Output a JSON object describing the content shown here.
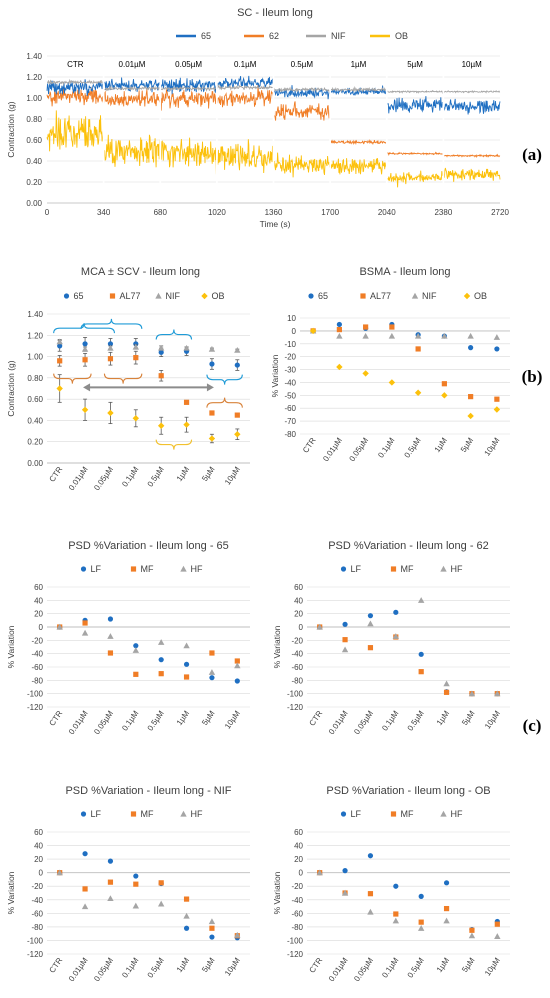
{
  "colors": {
    "blue": "#1f6fc2",
    "orange": "#f07d26",
    "gray": "#a5a5a5",
    "gold": "#fcc10c",
    "bracketBlue": "#1f9bd7",
    "bracketOrange": "#d8823a",
    "bracketGold": "#f2c12e",
    "arrowGray": "#8c8c8c"
  },
  "panel_labels": [
    "(a)",
    "(b)",
    "(c)"
  ],
  "chart_data": [
    {
      "type": "line",
      "title": "SC - Ileum long",
      "xlabel": "Time (s)",
      "ylabel": "Contraction (g)",
      "xticks": [
        "0",
        "340",
        "680",
        "1020",
        "1360",
        "1700",
        "2040",
        "2380",
        "2720"
      ],
      "yticks": [
        "0.00",
        "0.20",
        "0.40",
        "0.60",
        "0.80",
        "1.00",
        "1.20",
        "1.40"
      ],
      "xlim": [
        0,
        2720
      ],
      "ylim": [
        0,
        1.4
      ],
      "segments": [
        "CTR",
        "0.01µM",
        "0.05µM",
        "0.1µM",
        "0.5µM",
        "1µM",
        "5µM",
        "10µM"
      ],
      "series": [
        {
          "name": "65",
          "color": "#1f6fc2",
          "values": [
            1.1,
            1.12,
            1.12,
            1.15,
            1.05,
            1.06,
            0.93,
            0.92
          ],
          "noise": [
            0.08,
            0.08,
            0.08,
            0.07,
            0.06,
            0.04,
            0.09,
            0.08
          ]
        },
        {
          "name": "62",
          "color": "#f07d26",
          "values": [
            1.02,
            0.99,
            1.0,
            1.0,
            0.87,
            0.58,
            0.47,
            0.45
          ],
          "noise": [
            0.1,
            0.1,
            0.1,
            0.1,
            0.09,
            0.02,
            0.01,
            0.01
          ]
        },
        {
          "name": "NIF",
          "color": "#a5a5a5",
          "values": [
            1.15,
            1.09,
            1.09,
            1.1,
            1.08,
            1.08,
            1.06,
            1.06
          ],
          "noise": [
            0.02,
            0.02,
            0.02,
            0.02,
            0.02,
            0.02,
            0.01,
            0.01
          ]
        },
        {
          "name": "OB",
          "color": "#fcc10c",
          "values": [
            0.68,
            0.5,
            0.48,
            0.44,
            0.36,
            0.35,
            0.24,
            0.27
          ],
          "noise": [
            0.22,
            0.18,
            0.17,
            0.16,
            0.12,
            0.1,
            0.06,
            0.07
          ]
        }
      ]
    },
    {
      "type": "scatter",
      "title": "MCA ± SCV - Ileum long",
      "ylabel": "Contraction (g)",
      "categories": [
        "CTR",
        "0.01µM",
        "0.05µM",
        "0.1µM",
        "0.5µM",
        "1µM",
        "5µM",
        "10µM"
      ],
      "yticks": [
        "0.00",
        "0.20",
        "0.40",
        "0.60",
        "0.80",
        "1.00",
        "1.20",
        "1.40"
      ],
      "ylim": [
        0,
        1.4
      ],
      "series": [
        {
          "name": "65",
          "color": "#1f6fc2",
          "values": [
            1.1,
            1.12,
            1.12,
            1.12,
            1.04,
            1.05,
            0.93,
            0.92
          ],
          "err": [
            0.05,
            0.06,
            0.05,
            0.05,
            0.04,
            0.04,
            0.05,
            0.05
          ]
        },
        {
          "name": "AL77",
          "color": "#f07d26",
          "values": [
            0.96,
            0.97,
            0.98,
            0.99,
            0.82,
            0.57,
            0.47,
            0.45
          ],
          "err": [
            0.05,
            0.06,
            0.06,
            0.06,
            0.05,
            0.01,
            0.01,
            0.01
          ]
        },
        {
          "name": "NIF",
          "color": "#a5a5a5",
          "values": [
            1.14,
            1.07,
            1.08,
            1.09,
            1.08,
            1.08,
            1.07,
            1.06
          ],
          "err": [
            0.02,
            0.02,
            0.02,
            0.02,
            0.02,
            0.01,
            0.01,
            0.01
          ]
        },
        {
          "name": "OB",
          "color": "#fcc10c",
          "values": [
            0.7,
            0.5,
            0.47,
            0.42,
            0.35,
            0.36,
            0.23,
            0.27
          ],
          "err": [
            0.13,
            0.1,
            0.1,
            0.08,
            0.08,
            0.07,
            0.04,
            0.05
          ]
        }
      ]
    },
    {
      "type": "scatter",
      "title": "BSMA - Ileum long",
      "ylabel": "% Variation",
      "categories": [
        "CTR",
        "0.01µM",
        "0.05µM",
        "0.1µM",
        "0.5µM",
        "1µM",
        "5µM",
        "10µM"
      ],
      "yticks": [
        "10",
        "0",
        "-10",
        "-20",
        "-30",
        "-40",
        "-50",
        "-60",
        "-70",
        "-80"
      ],
      "ylim": [
        -80,
        10
      ],
      "series": [
        {
          "name": "65",
          "color": "#1f6fc2",
          "values": [
            0,
            5,
            2,
            5,
            -3,
            -4,
            -13,
            -14
          ]
        },
        {
          "name": "AL77",
          "color": "#f07d26",
          "values": [
            0,
            1,
            3,
            3,
            -14,
            -41,
            -51,
            -53
          ]
        },
        {
          "name": "NIF",
          "color": "#a5a5a5",
          "values": [
            0,
            -4,
            -4,
            -4,
            -4,
            -4,
            -4,
            -5
          ]
        },
        {
          "name": "OB",
          "color": "#fcc10c",
          "values": [
            0,
            -28,
            -33,
            -40,
            -48,
            -50,
            -66,
            -61
          ]
        }
      ]
    },
    {
      "type": "scatter",
      "title": "PSD %Variation - Ileum long -   65",
      "ylabel": "% Variation",
      "categories": [
        "CTR",
        "0.01µM",
        "0.05µM",
        "0.1µM",
        "0.5µM",
        "1µM",
        "5µM",
        "10µM"
      ],
      "yticks": [
        "60",
        "40",
        "20",
        "0",
        "-20",
        "-40",
        "-60",
        "-80",
        "-100",
        "-120"
      ],
      "ylim": [
        -120,
        60
      ],
      "series": [
        {
          "name": "LF",
          "color": "#1f6fc2",
          "values": [
            0,
            10,
            12,
            -28,
            -49,
            -56,
            -76,
            -81
          ]
        },
        {
          "name": "MF",
          "color": "#f07d26",
          "values": [
            0,
            6,
            -39,
            -71,
            -70,
            -75,
            -39,
            -51
          ]
        },
        {
          "name": "HF",
          "color": "#a5a5a5",
          "values": [
            0,
            -9,
            -14,
            -35,
            -23,
            -28,
            -68,
            -58
          ]
        }
      ]
    },
    {
      "type": "scatter",
      "title": "PSD %Variation - Ileum long -   62",
      "ylabel": "% Variation",
      "categories": [
        "CTR",
        "0.01µM",
        "0.05µM",
        "0.1µM",
        "0.5µM",
        "1µM",
        "5µM",
        "10µM"
      ],
      "yticks": [
        "60",
        "40",
        "20",
        "0",
        "-20",
        "-40",
        "-60",
        "-80",
        "-100",
        "-120"
      ],
      "ylim": [
        -120,
        60
      ],
      "series": [
        {
          "name": "LF",
          "color": "#1f6fc2",
          "values": [
            0,
            4,
            17,
            22,
            -41,
            -97,
            -100,
            -100
          ]
        },
        {
          "name": "MF",
          "color": "#f07d26",
          "values": [
            0,
            -19,
            -31,
            -15,
            -67,
            -98,
            -100,
            -100
          ]
        },
        {
          "name": "HF",
          "color": "#a5a5a5",
          "values": [
            0,
            -34,
            5,
            -14,
            40,
            -85,
            -100,
            -100
          ]
        }
      ]
    },
    {
      "type": "scatter",
      "title": "PSD %Variation - Ileum long - NIF",
      "ylabel": "% Variation",
      "categories": [
        "CTR",
        "0.01µM",
        "0.05µM",
        "0.1µM",
        "0.5µM",
        "1µM",
        "5µM",
        "10µM"
      ],
      "yticks": [
        "60",
        "40",
        "20",
        "0",
        "-20",
        "-40",
        "-60",
        "-80",
        "-100",
        "-120"
      ],
      "ylim": [
        -120,
        60
      ],
      "series": [
        {
          "name": "LF",
          "color": "#1f6fc2",
          "values": [
            0,
            28,
            17,
            -5,
            -16,
            -82,
            -95,
            -96
          ]
        },
        {
          "name": "MF",
          "color": "#f07d26",
          "values": [
            0,
            -24,
            -14,
            -17,
            -15,
            -39,
            -82,
            -93
          ]
        },
        {
          "name": "HF",
          "color": "#a5a5a5",
          "values": [
            0,
            -50,
            -38,
            -49,
            -46,
            -64,
            -72,
            -92
          ]
        }
      ]
    },
    {
      "type": "scatter",
      "title": "PSD %Variation - Ileum long - OB",
      "ylabel": "% Variation",
      "categories": [
        "CTR",
        "0.01µM",
        "0.05µM",
        "0.1µM",
        "0.5µM",
        "1µM",
        "5µM",
        "10µM"
      ],
      "yticks": [
        "60",
        "40",
        "20",
        "0",
        "-20",
        "-40",
        "-60",
        "-80",
        "-100",
        "-120"
      ],
      "ylim": [
        -120,
        60
      ],
      "series": [
        {
          "name": "LF",
          "color": "#1f6fc2",
          "values": [
            0,
            3,
            25,
            -20,
            -35,
            -15,
            -84,
            -72
          ]
        },
        {
          "name": "MF",
          "color": "#f07d26",
          "values": [
            0,
            -30,
            -31,
            -61,
            -73,
            -53,
            -85,
            -76
          ]
        },
        {
          "name": "HF",
          "color": "#a5a5a5",
          "values": [
            0,
            -30,
            -58,
            -71,
            -82,
            -71,
            -93,
            -94
          ]
        }
      ]
    }
  ]
}
